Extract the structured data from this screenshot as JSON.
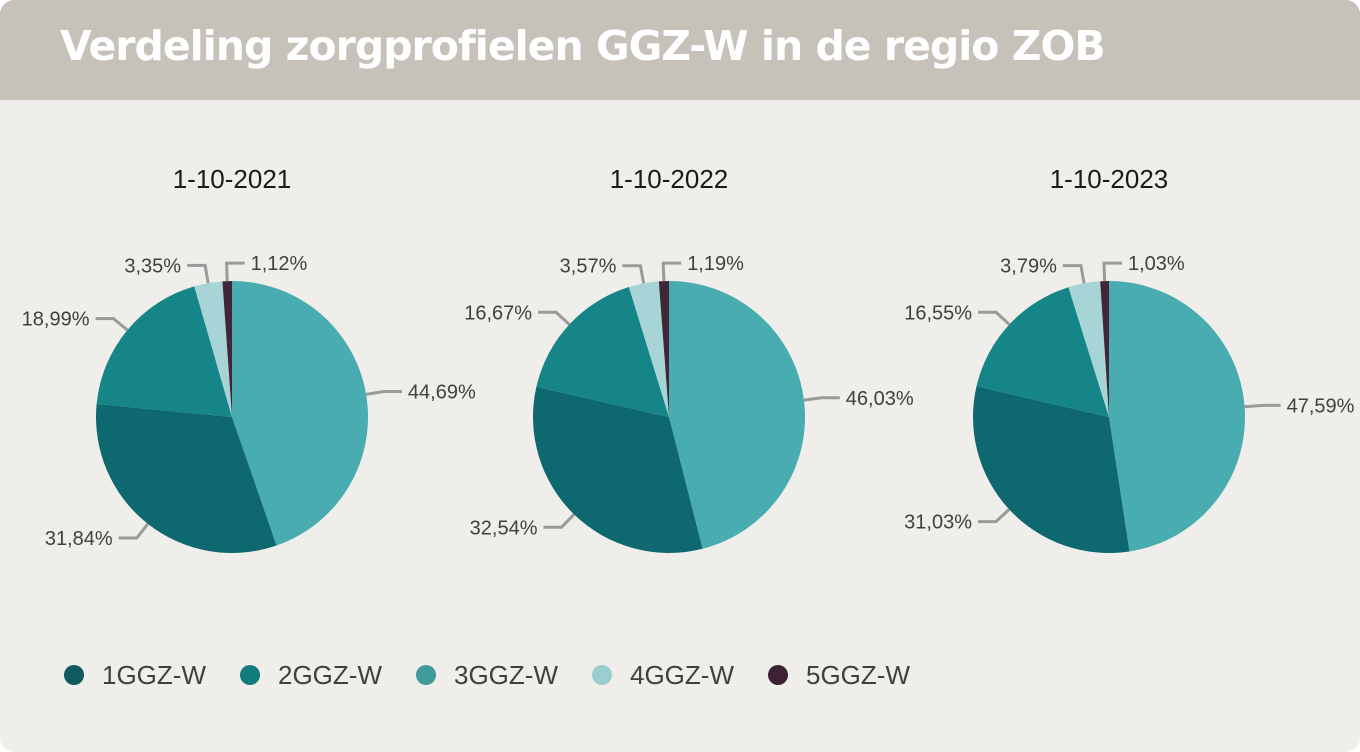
{
  "header": {
    "title": "Verdeling zorgprofielen GGZ-W in de regio ZOB"
  },
  "colors": {
    "1GGZ-W": "#0e6870",
    "2GGZ-W": "#158588",
    "3GGZ-W": "#48acb0",
    "4GGZ-W": "#a6d4d7",
    "5GGZ-W": "#402636",
    "leader": "#9a9a9a",
    "label": "#404040"
  },
  "legend": [
    {
      "label": "1GGZ-W",
      "color": "#0e5a5e"
    },
    {
      "label": "2GGZ-W",
      "color": "#127b7c"
    },
    {
      "label": "3GGZ-W",
      "color": "#3f9a99"
    },
    {
      "label": "4GGZ-W",
      "color": "#9ccdd0"
    },
    {
      "label": "5GGZ-W",
      "color": "#3d2233"
    }
  ],
  "chart_data": [
    {
      "type": "pie",
      "title": "1-10-2021",
      "categories": [
        "1GGZ-W",
        "2GGZ-W",
        "3GGZ-W",
        "4GGZ-W",
        "5GGZ-W"
      ],
      "values": [
        31.84,
        18.99,
        44.69,
        3.35,
        1.12
      ],
      "labels": [
        "31,84%",
        "18,99%",
        "44,69%",
        "3,35%",
        "1,12%"
      ],
      "legend_position": "bottom"
    },
    {
      "type": "pie",
      "title": "1-10-2022",
      "categories": [
        "1GGZ-W",
        "2GGZ-W",
        "3GGZ-W",
        "4GGZ-W",
        "5GGZ-W"
      ],
      "values": [
        32.54,
        16.67,
        46.03,
        3.57,
        1.19
      ],
      "labels": [
        "32,54%",
        "16,67%",
        "46,03%",
        "3,57%",
        "1,19%"
      ],
      "legend_position": "bottom"
    },
    {
      "type": "pie",
      "title": "1-10-2023",
      "categories": [
        "1GGZ-W",
        "2GGZ-W",
        "3GGZ-W",
        "4GGZ-W",
        "5GGZ-W"
      ],
      "values": [
        31.03,
        16.55,
        47.59,
        3.79,
        1.03
      ],
      "labels": [
        "31,03%",
        "16,55%",
        "47,59%",
        "3,79%",
        "1,03%"
      ],
      "legend_position": "bottom"
    }
  ]
}
